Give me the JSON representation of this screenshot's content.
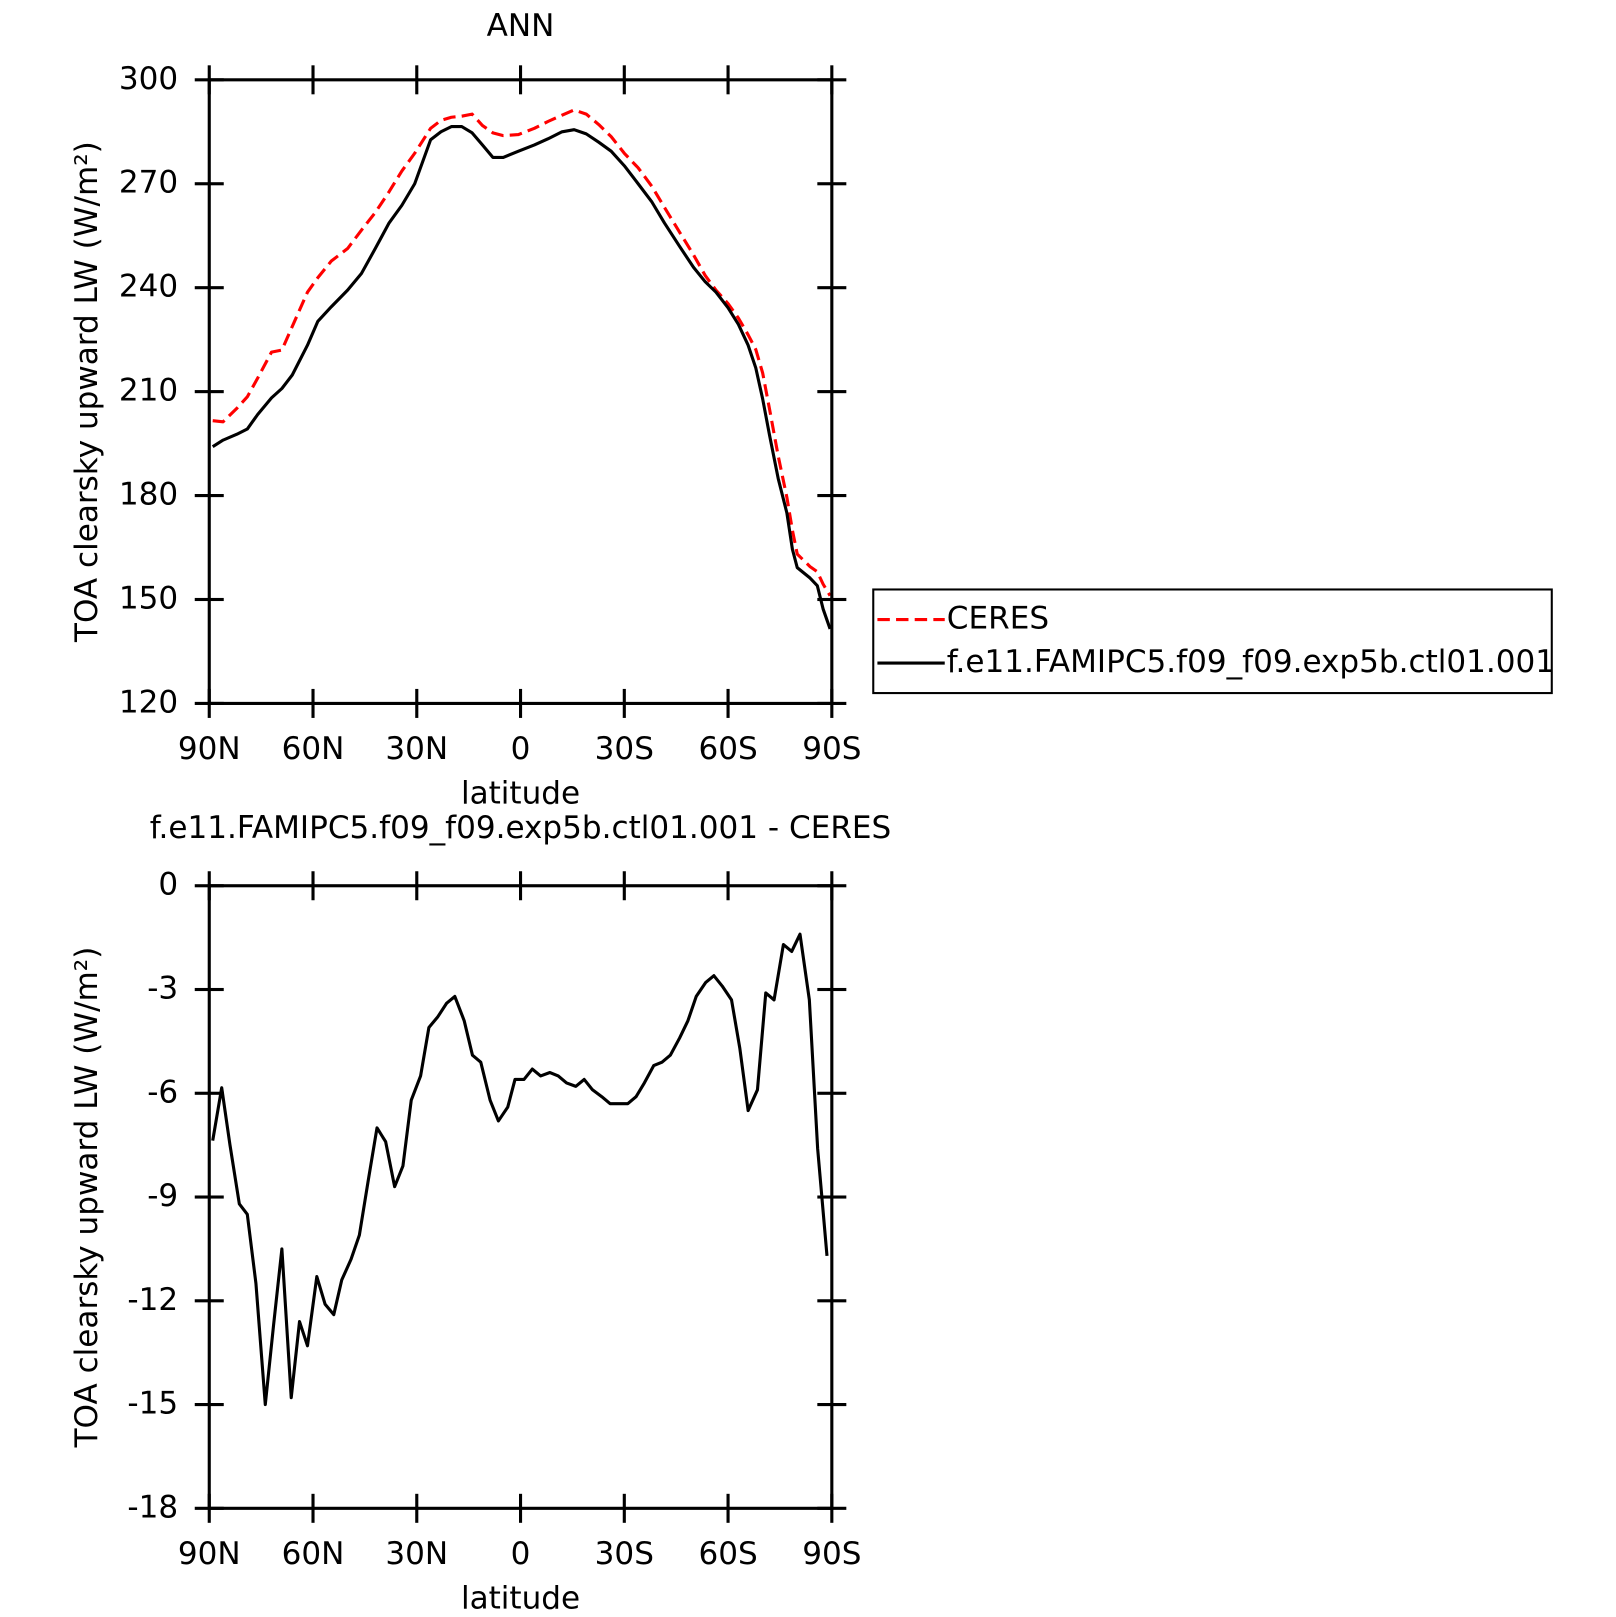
{
  "chart_data": [
    {
      "type": "line",
      "title": "ANN",
      "xlabel": "latitude",
      "ylabel": "TOA clearsky upward LW (W/m²)",
      "x": [
        89,
        86,
        82,
        79,
        76,
        72,
        69,
        66,
        61.6,
        58.6,
        54.7,
        50,
        46,
        42,
        38,
        34.3,
        30.6,
        26,
        23,
        20,
        17,
        14,
        11,
        8,
        5,
        0.6,
        -4,
        -8,
        -12,
        -15.5,
        -19,
        -22.6,
        -26.2,
        -30,
        -34,
        -38,
        -41.6,
        -46,
        -50,
        -53.4,
        -56.5,
        -60,
        -63,
        -65.8,
        -68,
        -70,
        -72,
        -74.5,
        -77,
        -78.6,
        -80,
        -83.7,
        -85.8,
        -87.5,
        -89.5
      ],
      "series": [
        {
          "name": "CERES",
          "color": "#ff0000",
          "dashed": true,
          "values": [
            201.6,
            201.3,
            205.2,
            208.5,
            213.9,
            221.4,
            222,
            228.8,
            238.7,
            242.9,
            247.7,
            251.3,
            256.6,
            261.7,
            267.7,
            273.7,
            278.8,
            286,
            288.3,
            289.2,
            289.5,
            290.1,
            286.8,
            284.7,
            283.9,
            284.2,
            286,
            288,
            289.8,
            291.3,
            290.1,
            287.1,
            283.6,
            278.8,
            274.6,
            269.2,
            263.2,
            256,
            249.5,
            243.5,
            239.3,
            235.4,
            231.2,
            226.4,
            222.2,
            215.4,
            204.9,
            191.4,
            179.5,
            170,
            163.1,
            159.5,
            158,
            154.4,
            151.1
          ]
        },
        {
          "name": "f.e11.FAMIPC5.f09_f09.exp5b.ctl01.001",
          "color": "#000000",
          "dashed": false,
          "values": [
            194.1,
            196,
            197.7,
            199.2,
            203.4,
            208.2,
            210.9,
            214.8,
            223.4,
            230.3,
            234.5,
            239.3,
            244.1,
            251.3,
            258.7,
            263.8,
            270,
            282.7,
            285,
            286.5,
            286.5,
            284.7,
            281.2,
            277.6,
            277.6,
            279.4,
            281.2,
            283,
            285,
            285.6,
            284.4,
            282,
            279.4,
            275.2,
            270,
            264.7,
            258.7,
            251.9,
            245.9,
            241.7,
            238.7,
            234.2,
            229.4,
            223.4,
            216.9,
            207.9,
            197.4,
            184.9,
            175,
            164.5,
            159.2,
            156.2,
            154,
            147.2,
            141.5
          ]
        }
      ],
      "xlim": [
        90,
        -90
      ],
      "xticks": [
        {
          "value": 90,
          "label": "90N"
        },
        {
          "value": 60,
          "label": "60N"
        },
        {
          "value": 30,
          "label": "30N"
        },
        0,
        {
          "value": -30,
          "label": "30S"
        },
        {
          "value": -60,
          "label": "60S"
        },
        {
          "value": -90,
          "label": "90S"
        }
      ],
      "ylim": [
        120,
        300
      ],
      "yticks": [
        120,
        150,
        180,
        210,
        240,
        270,
        300
      ],
      "legend": "right"
    },
    {
      "type": "line",
      "title": "f.e11.FAMIPC5.f09_f09.exp5b.ctl01.001 - CERES",
      "xlabel": "latitude",
      "ylabel": "TOA clearsky upward LW (W/m²)",
      "x": [
        89,
        86.4,
        84,
        81.3,
        79,
        76.5,
        73.8,
        71.4,
        69,
        66.3,
        63.9,
        61.6,
        58.9,
        56.5,
        54,
        51.7,
        49,
        46.6,
        44,
        41.5,
        39,
        36.4,
        34,
        31.6,
        28.9,
        26.5,
        24,
        21.4,
        19,
        16.3,
        13.9,
        11.5,
        8.8,
        6.4,
        3.7,
        1.6,
        -1,
        -3.4,
        -5.8,
        -8.5,
        -10.9,
        -13.3,
        -16,
        -18.4,
        -20.8,
        -23.5,
        -25.9,
        -28.3,
        -31,
        -33.4,
        -35.8,
        -38.5,
        -40.9,
        -43.3,
        -46,
        -48.4,
        -50.8,
        -53.5,
        -55.9,
        -58.3,
        -61,
        -63.4,
        -65.8,
        -68.5,
        -70.9,
        -73.3,
        -76,
        -78.4,
        -80.8,
        -83.5,
        -85.9,
        -88.6
      ],
      "series": [
        {
          "color": "#000000",
          "dashed": false,
          "values": [
            -7.37,
            -5.84,
            -7.5,
            -9.2,
            -9.5,
            -11.5,
            -15.0,
            -12.7,
            -10.5,
            -14.8,
            -12.6,
            -13.3,
            -11.3,
            -12.1,
            -12.4,
            -11.4,
            -10.8,
            -10.1,
            -8.5,
            -7.0,
            -7.4,
            -8.7,
            -8.1,
            -6.2,
            -5.5,
            -4.1,
            -3.8,
            -3.4,
            -3.2,
            -3.9,
            -4.9,
            -5.1,
            -6.2,
            -6.8,
            -6.4,
            -5.6,
            -5.6,
            -5.3,
            -5.5,
            -5.4,
            -5.5,
            -5.7,
            -5.8,
            -5.6,
            -5.9,
            -6.1,
            -6.3,
            -6.3,
            -6.3,
            -6.1,
            -5.7,
            -5.2,
            -5.1,
            -4.9,
            -4.4,
            -3.9,
            -3.2,
            -2.8,
            -2.6,
            -2.9,
            -3.3,
            -4.7,
            -6.5,
            -5.9,
            -3.1,
            -3.3,
            -1.7,
            -1.9,
            -1.4,
            -3.3,
            -7.6,
            -10.7
          ]
        }
      ],
      "xlim": [
        90,
        -90
      ],
      "xticks": [
        {
          "value": 90,
          "label": "90N"
        },
        {
          "value": 60,
          "label": "60N"
        },
        {
          "value": 30,
          "label": "30N"
        },
        0,
        {
          "value": -30,
          "label": "30S"
        },
        {
          "value": -60,
          "label": "60S"
        },
        {
          "value": -90,
          "label": "90S"
        }
      ],
      "ylim": [
        -18,
        0
      ],
      "yticks": [
        -18,
        -15,
        -12,
        -9,
        -6,
        -3,
        0
      ]
    }
  ]
}
